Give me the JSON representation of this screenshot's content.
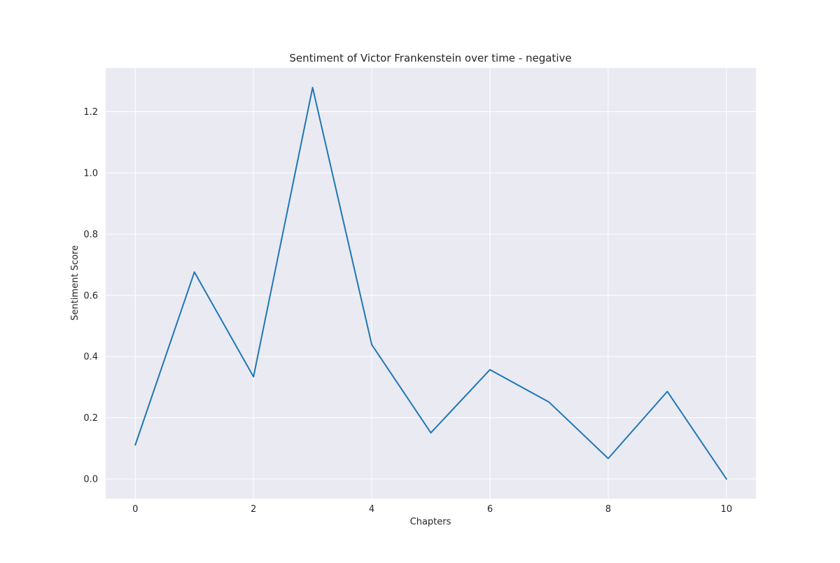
{
  "chart_data": {
    "type": "line",
    "title": "Sentiment of Victor Frankenstein over time - negative",
    "xlabel": "Chapters",
    "ylabel": "Sentiment Score",
    "xlim": [
      -0.5,
      10.5
    ],
    "ylim": [
      -0.064,
      1.343
    ],
    "xticks": [
      0,
      2,
      4,
      6,
      8,
      10
    ],
    "xtick_labels": [
      "0",
      "2",
      "4",
      "6",
      "8",
      "10"
    ],
    "yticks": [
      0.0,
      0.2,
      0.4,
      0.6,
      0.8,
      1.0,
      1.2
    ],
    "ytick_labels": [
      "0.0",
      "0.2",
      "0.4",
      "0.6",
      "0.8",
      "1.0",
      "1.2"
    ],
    "grid": true,
    "style": "seaborn-darkgrid",
    "series": [
      {
        "name": "negative",
        "color": "#1f77b4",
        "x": [
          0,
          1,
          2,
          3,
          4,
          5,
          6,
          7,
          8,
          9,
          10
        ],
        "values": [
          0.111,
          0.676,
          0.334,
          1.279,
          0.439,
          0.151,
          0.357,
          0.251,
          0.067,
          0.286,
          0.0
        ]
      }
    ]
  },
  "colors": {
    "plot_background": "#eaeaf2",
    "grid": "#ffffff",
    "line": "#1f77b4",
    "text": "#262626"
  }
}
